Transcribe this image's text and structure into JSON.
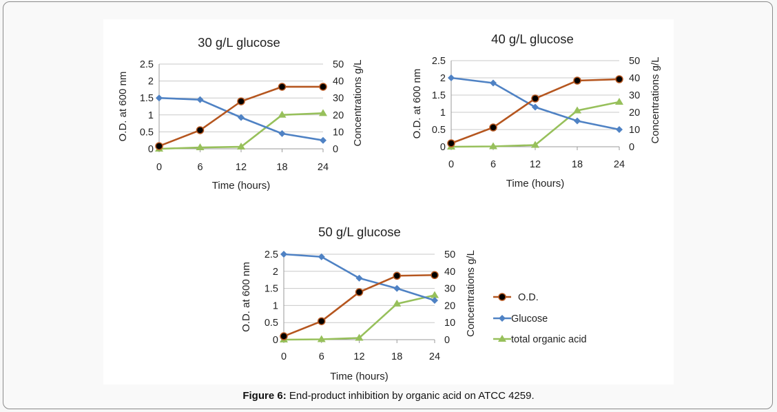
{
  "caption": {
    "label": "Figure 6:",
    "text": "End-product inhibition by organic acid on ATCC 4259."
  },
  "colors": {
    "od": "#b5561f",
    "glucose": "#4f82c4",
    "acid": "#97c05b",
    "grid": "#c8c8c8",
    "marker_od": "#000000"
  },
  "legend": {
    "od": "O.D.",
    "glucose": "Glucose",
    "acid": "total organic acid"
  },
  "chart_data": [
    {
      "type": "line",
      "title": "30 g/L glucose",
      "xlabel": "Time (hours)",
      "ylabel": "O.D. at 600 nm",
      "y2label": "Concentrations  g/L",
      "x": [
        0,
        6,
        12,
        18,
        24
      ],
      "ylim": [
        0,
        2.5
      ],
      "y2lim": [
        0,
        50
      ],
      "yticks": [
        "0",
        "0.5",
        "1",
        "1.5",
        "2",
        "2.5"
      ],
      "y2ticks": [
        "0",
        "10",
        "20",
        "30",
        "40",
        "50"
      ],
      "series": [
        {
          "name": "O.D.",
          "axis": "left",
          "values": [
            0.08,
            0.55,
            1.4,
            1.83,
            1.83
          ]
        },
        {
          "name": "Glucose",
          "axis": "right",
          "values": [
            30,
            29,
            18.5,
            9,
            5
          ]
        },
        {
          "name": "total organic acid",
          "axis": "right",
          "values": [
            0,
            0.8,
            1.2,
            20,
            21
          ]
        }
      ]
    },
    {
      "type": "line",
      "title": "40 g/L glucose",
      "xlabel": "Time (hours)",
      "ylabel": "O.D. at 600 nm",
      "y2label": "Concentrations  g/L",
      "x": [
        0,
        6,
        12,
        18,
        24
      ],
      "ylim": [
        0,
        2.5
      ],
      "y2lim": [
        0,
        50
      ],
      "yticks": [
        "0",
        "0.5",
        "1",
        "1.5",
        "2",
        "2.5"
      ],
      "y2ticks": [
        "0",
        "10",
        "20",
        "30",
        "40",
        "50"
      ],
      "series": [
        {
          "name": "O.D.",
          "axis": "left",
          "values": [
            0.1,
            0.56,
            1.4,
            1.92,
            1.96
          ]
        },
        {
          "name": "Glucose",
          "axis": "right",
          "values": [
            40,
            37,
            23,
            15,
            10
          ]
        },
        {
          "name": "total organic acid",
          "axis": "right",
          "values": [
            0,
            0.2,
            1,
            21,
            26
          ]
        }
      ]
    },
    {
      "type": "line",
      "title": "50 g/L glucose",
      "xlabel": "Time (hours)",
      "ylabel": "O.D. at 600 nm",
      "y2label": "Concentrations g/L",
      "x": [
        0,
        6,
        12,
        18,
        24
      ],
      "ylim": [
        0,
        2.5
      ],
      "y2lim": [
        0,
        50
      ],
      "yticks": [
        "0",
        "0.5",
        "1",
        "1.5",
        "2",
        "2.5"
      ],
      "y2ticks": [
        "0",
        "10",
        "20",
        "30",
        "40",
        "50"
      ],
      "series": [
        {
          "name": "O.D.",
          "axis": "left",
          "values": [
            0.1,
            0.54,
            1.39,
            1.87,
            1.89
          ]
        },
        {
          "name": "Glucose",
          "axis": "right",
          "values": [
            50,
            48.5,
            36,
            30,
            23
          ]
        },
        {
          "name": "total organic acid",
          "axis": "right",
          "values": [
            0,
            0.2,
            1,
            21,
            26
          ]
        }
      ]
    }
  ]
}
